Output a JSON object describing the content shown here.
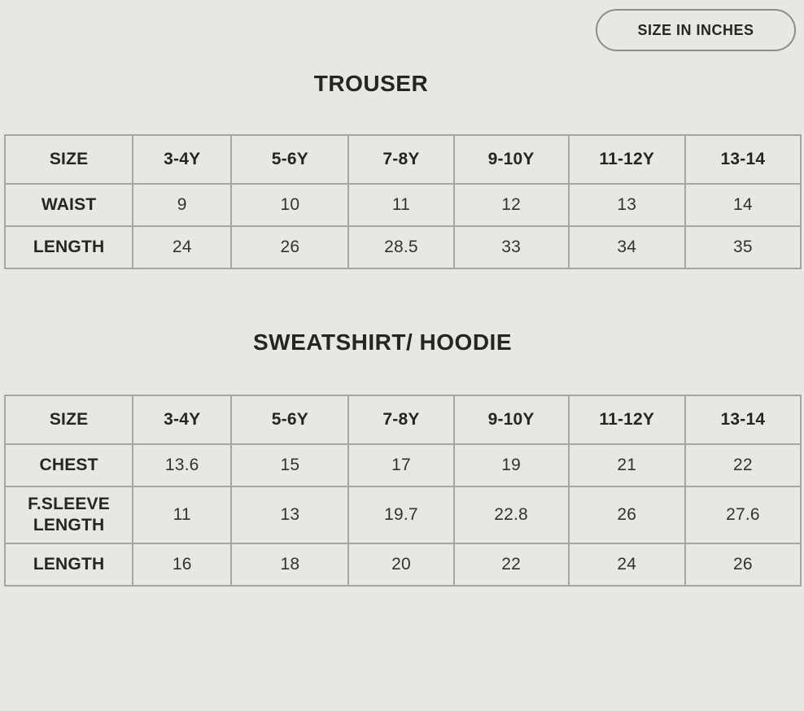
{
  "badge": {
    "label": "SIZE IN INCHES"
  },
  "tables": [
    {
      "title": "TROUSER",
      "header": [
        "SIZE",
        "3-4Y",
        "5-6Y",
        "7-8Y",
        "9-10Y",
        "11-12Y",
        "13-14"
      ],
      "rows": [
        {
          "label": "WAIST",
          "values": [
            "9",
            "10",
            "11",
            "12",
            "13",
            "14"
          ]
        },
        {
          "label": "LENGTH",
          "values": [
            "24",
            "26",
            "28.5",
            "33",
            "34",
            "35"
          ]
        }
      ]
    },
    {
      "title": "SWEATSHIRT/ HOODIE",
      "header": [
        "SIZE",
        "3-4Y",
        "5-6Y",
        "7-8Y",
        "9-10Y",
        "11-12Y",
        "13-14"
      ],
      "rows": [
        {
          "label": "CHEST",
          "values": [
            "13.6",
            "15",
            "17",
            "19",
            "21",
            "22"
          ]
        },
        {
          "label": "F.SLEEVE LENGTH",
          "values": [
            "11",
            "13",
            "19.7",
            "22.8",
            "26",
            "27.6"
          ]
        },
        {
          "label": "LENGTH",
          "values": [
            "16",
            "18",
            "20",
            "22",
            "24",
            "26"
          ]
        }
      ]
    }
  ],
  "colors": {
    "page_background": "#e9e7e2",
    "table_border": "#a6a5a0",
    "badge_border": "#8e8d89",
    "text_primary": "#262522",
    "text_data": "#333230"
  }
}
